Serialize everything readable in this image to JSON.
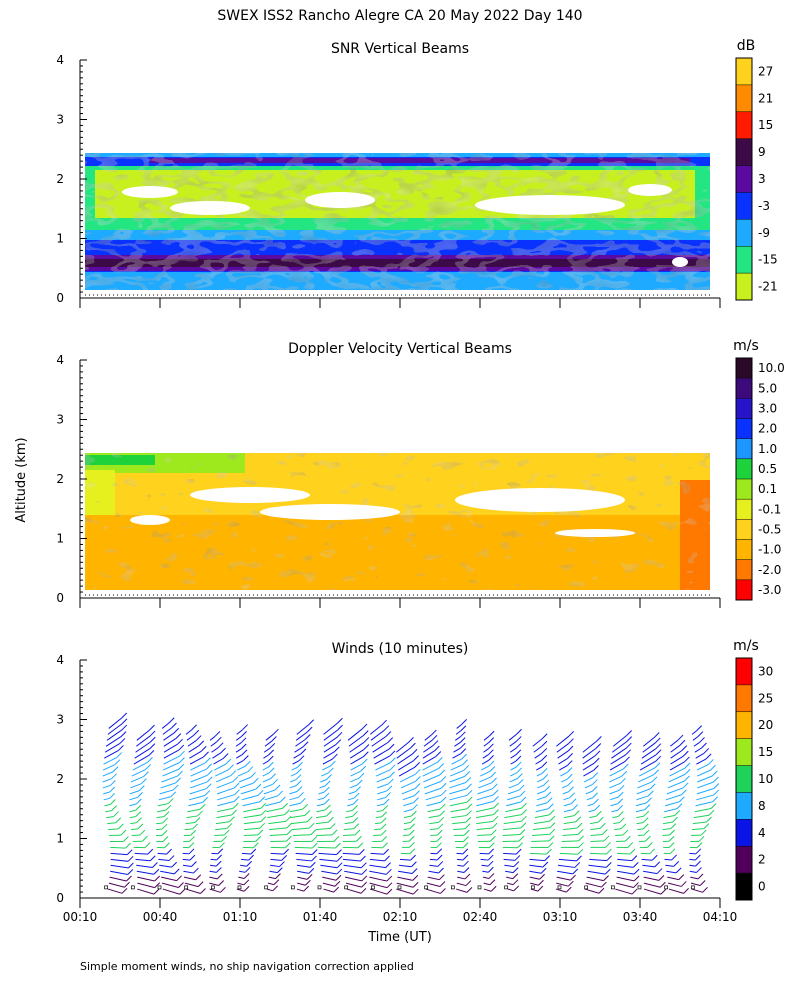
{
  "page": {
    "title": "SWEX ISS2 Rancho Alegre CA  20 May 2022 Day 140",
    "y_axis_label": "Altitude (km)",
    "x_axis_label": "Time (UT)",
    "footnote": "Simple moment winds, no ship navigation correction applied"
  },
  "chart_data": [
    {
      "type": "heatmap",
      "title": "SNR Vertical Beams",
      "colorbar_unit": "dB",
      "colorbar_labels": [
        "27",
        "21",
        "15",
        "9",
        "3",
        "-3",
        "-9",
        "-15",
        "-21"
      ],
      "colorbar_colors": [
        "#ffd21e",
        "#ff8c00",
        "#ff1a00",
        "#3c0a46",
        "#5a0aa0",
        "#0a32ff",
        "#1eaaff",
        "#23e682",
        "#c8f01e"
      ],
      "ylim": [
        0,
        4
      ],
      "yticks": [
        "0",
        "1",
        "2",
        "3",
        "4"
      ],
      "xlim_minutes": [
        10,
        250
      ],
      "top_km": 2.4
    },
    {
      "type": "heatmap",
      "title": "Doppler Velocity Vertical Beams",
      "colorbar_unit": "m/s",
      "colorbar_labels": [
        "10.0",
        "5.0",
        "3.0",
        "2.0",
        "1.0",
        "0.5",
        "0.1",
        "-0.1",
        "-0.5",
        "-1.0",
        "-2.0",
        "-3.0"
      ],
      "colorbar_colors": [
        "#2a0a28",
        "#3c0a7a",
        "#2814c8",
        "#0a32ff",
        "#1e96ff",
        "#1ed23c",
        "#9ee81e",
        "#e6f01e",
        "#ffd21e",
        "#ffb400",
        "#ff7800",
        "#ff0000"
      ],
      "ylim": [
        0,
        4
      ],
      "yticks": [
        "0",
        "1",
        "2",
        "3",
        "4"
      ],
      "xlim_minutes": [
        10,
        250
      ],
      "top_km": 2.4
    },
    {
      "type": "scatter",
      "title": "Winds (10 minutes)",
      "colorbar_unit": "m/s",
      "colorbar_labels": [
        "30",
        "25",
        "20",
        "15",
        "10",
        "8",
        "4",
        "2",
        "0"
      ],
      "colorbar_colors": [
        "#ff0000",
        "#ff7800",
        "#ffb400",
        "#9ee81e",
        "#1ed25a",
        "#1eaaff",
        "#0a14e6",
        "#50005a",
        "#000000"
      ],
      "ylim": [
        0,
        4
      ],
      "yticks": [
        "0",
        "1",
        "2",
        "3",
        "4"
      ],
      "xticks": [
        "00:10",
        "00:40",
        "01:10",
        "01:40",
        "02:10",
        "02:40",
        "03:10",
        "03:40",
        "04:10"
      ],
      "xlim_minutes": [
        10,
        250
      ],
      "profile_times_minutes": [
        20,
        30,
        40,
        50,
        60,
        70,
        80,
        90,
        100,
        110,
        120,
        130,
        140,
        150,
        160,
        170,
        180,
        190,
        200,
        210,
        220,
        230,
        240
      ],
      "profile_top_km": [
        2.9,
        2.7,
        2.9,
        2.8,
        2.7,
        2.8,
        2.7,
        2.8,
        2.8,
        2.7,
        2.8,
        2.5,
        2.7,
        2.9,
        2.7,
        2.7,
        2.6,
        2.6,
        2.5,
        2.6,
        2.6,
        2.6,
        2.8
      ]
    }
  ]
}
